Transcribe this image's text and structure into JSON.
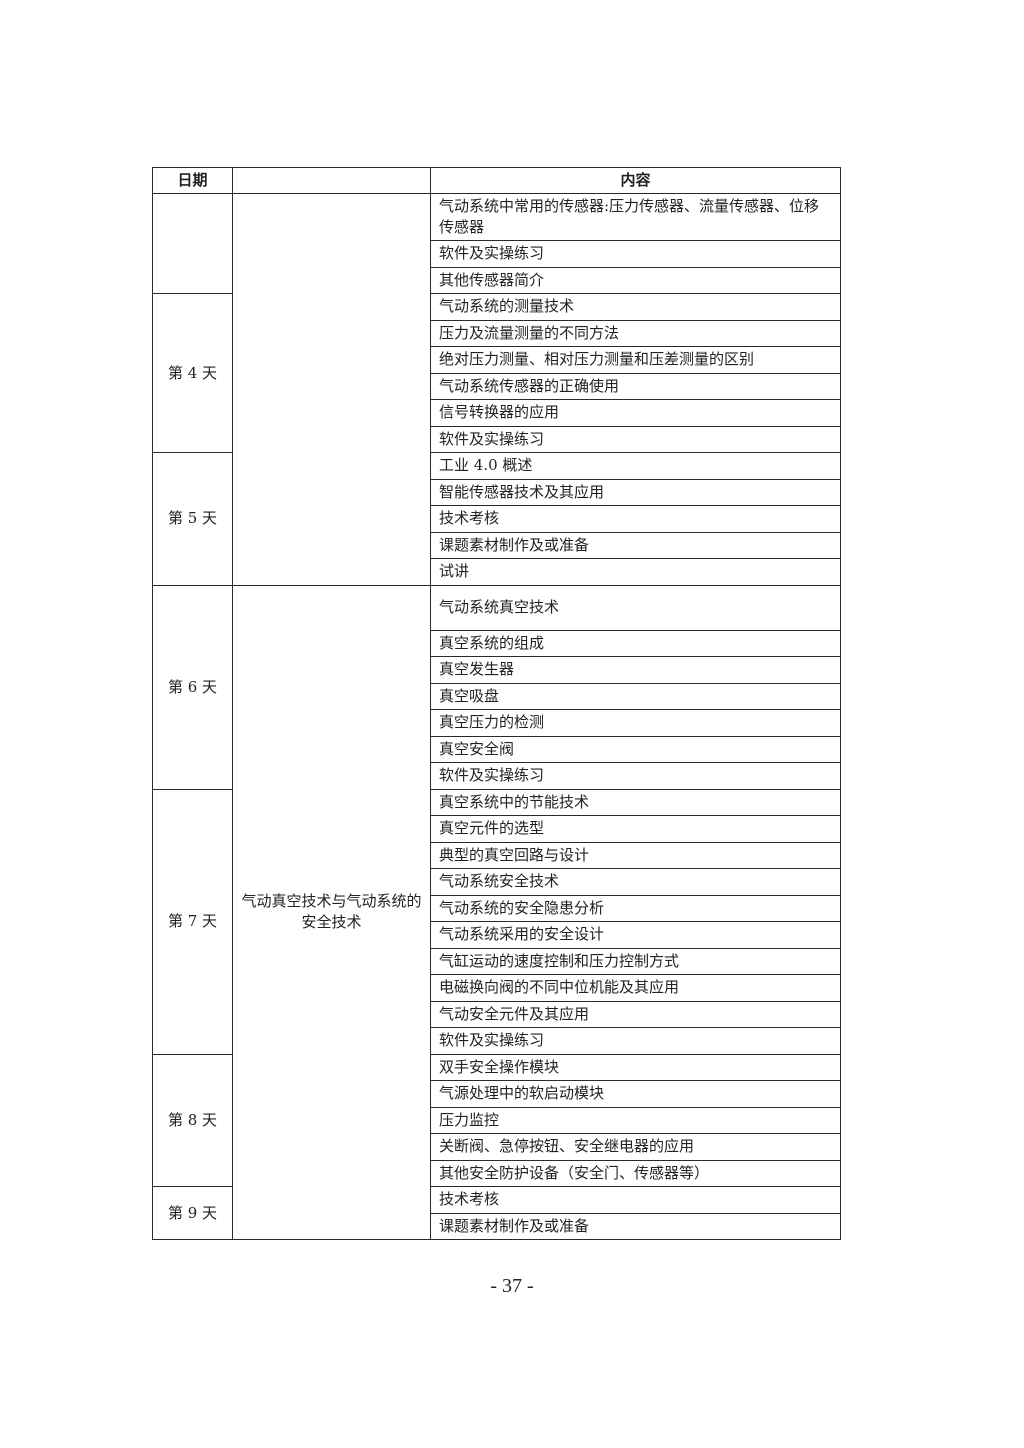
{
  "table": {
    "headers": [
      "日期",
      "",
      "内容"
    ],
    "groups": [
      {
        "day": "",
        "items": [
          "气动系统中常用的传感器:压力传感器、流量传感器、位移传感器",
          "软件及实操练习",
          "其他传感器简介"
        ]
      },
      {
        "day": "第 4 天",
        "items": [
          "气动系统的测量技术",
          "压力及流量测量的不同方法",
          "绝对压力测量、相对压力测量和压差测量的区别",
          "气动系统传感器的正确使用",
          "信号转换器的应用",
          "软件及实操练习"
        ]
      },
      {
        "day": "第 5 天",
        "items": [
          "工业 4.0 概述",
          "智能传感器技术及其应用",
          "技术考核",
          "课题素材制作及或准备",
          "试讲"
        ]
      },
      {
        "day": "第 6 天",
        "items": [
          "气动系统真空技术",
          "真空系统的组成",
          "真空发生器",
          "真空吸盘",
          "真空压力的检测",
          "真空安全阀",
          "软件及实操练习"
        ]
      },
      {
        "day": "第 7 天",
        "items": [
          "真空系统中的节能技术",
          "真空元件的选型",
          "典型的真空回路与设计",
          "气动系统安全技术",
          "气动系统的安全隐患分析",
          "气动系统采用的安全设计",
          "气缸运动的速度控制和压力控制方式",
          "电磁换向阀的不同中位机能及其应用",
          "气动安全元件及其应用",
          "软件及实操练习"
        ]
      },
      {
        "day": "第 8 天",
        "items": [
          "双手安全操作模块",
          "气源处理中的软启动模块",
          "压力监控",
          "关断阀、急停按钮、安全继电器的应用",
          "其他安全防护设备（安全门、传感器等）"
        ]
      },
      {
        "day": "第 9 天",
        "items": [
          "技术考核",
          "课题素材制作及或准备"
        ]
      }
    ],
    "modules": [
      {
        "label": "",
        "groups": [
          0,
          1,
          2
        ]
      },
      {
        "label": "气动真空技术与气动系统的安全技术",
        "groups": [
          3,
          4,
          5,
          6
        ]
      }
    ]
  },
  "page_number": "- 37 -"
}
